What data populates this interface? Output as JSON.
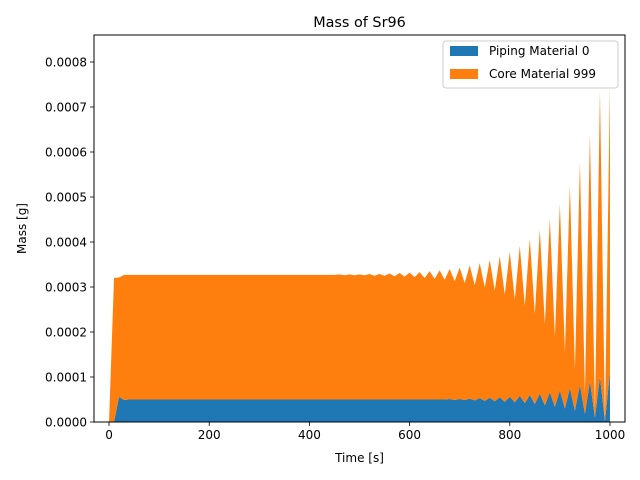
{
  "chart_data": {
    "type": "area",
    "stacked": true,
    "title": "Mass of Sr96",
    "xlabel": "Time [s]",
    "ylabel": "Mass [g]",
    "xlim": [
      -30,
      1030
    ],
    "ylim": [
      0,
      0.00086
    ],
    "x_ticks": [
      0,
      200,
      400,
      600,
      800,
      1000
    ],
    "x_tick_labels": [
      "0",
      "200",
      "400",
      "600",
      "800",
      "1000"
    ],
    "y_ticks": [
      0,
      0.0001,
      0.0002,
      0.0003,
      0.0004,
      0.0005,
      0.0006,
      0.0007,
      0.0008
    ],
    "y_tick_labels": [
      "0.0000",
      "0.0001",
      "0.0002",
      "0.0003",
      "0.0004",
      "0.0005",
      "0.0006",
      "0.0007",
      "0.0008"
    ],
    "grid": false,
    "legend_position": "top-right",
    "series": [
      {
        "name": "Piping Material 0",
        "color": "#1f77b4",
        "x": [
          0,
          10,
          20,
          30,
          40,
          50,
          60,
          70,
          80,
          90,
          100,
          110,
          120,
          130,
          140,
          150,
          160,
          170,
          180,
          190,
          200,
          210,
          220,
          230,
          240,
          250,
          260,
          270,
          280,
          290,
          300,
          310,
          320,
          330,
          340,
          350,
          360,
          370,
          380,
          390,
          400,
          410,
          420,
          430,
          440,
          450,
          460,
          470,
          480,
          490,
          500,
          510,
          520,
          530,
          540,
          550,
          560,
          570,
          580,
          590,
          600,
          610,
          620,
          630,
          640,
          650,
          660,
          670,
          680,
          690,
          700,
          710,
          720,
          730,
          740,
          750,
          760,
          770,
          780,
          790,
          800,
          810,
          820,
          830,
          840,
          850,
          860,
          870,
          880,
          890,
          900,
          910,
          920,
          930,
          940,
          950,
          960,
          970,
          980,
          990,
          1000
        ],
        "values": [
          0,
          0,
          5.6e-05,
          4.9e-05,
          5e-05,
          5e-05,
          5e-05,
          5e-05,
          5e-05,
          5e-05,
          5e-05,
          5e-05,
          5e-05,
          5e-05,
          5e-05,
          5e-05,
          5e-05,
          5e-05,
          5e-05,
          5e-05,
          5e-05,
          5e-05,
          5e-05,
          5e-05,
          5e-05,
          5e-05,
          5e-05,
          5e-05,
          5e-05,
          5e-05,
          5e-05,
          5e-05,
          5e-05,
          5e-05,
          5e-05,
          5e-05,
          5e-05,
          5e-05,
          5e-05,
          5e-05,
          5e-05,
          5e-05,
          5e-05,
          5e-05,
          5e-05,
          5e-05,
          5e-05,
          5e-05,
          5e-05,
          5e-05,
          5e-05,
          5e-05,
          5e-05,
          5e-05,
          5e-05,
          5e-05,
          5e-05,
          5e-05,
          5e-05,
          5e-05,
          5e-05,
          5e-05,
          5e-05,
          5e-05,
          5e-05,
          5e-05,
          5e-05,
          5e-05,
          5.1e-05,
          4.9e-05,
          5.1e-05,
          4.9e-05,
          5.2e-05,
          4.8e-05,
          5.3e-05,
          4.7e-05,
          5.4e-05,
          4.6e-05,
          5.5e-05,
          4.5e-05,
          5.6e-05,
          4.4e-05,
          5.8e-05,
          4.2e-05,
          6e-05,
          4e-05,
          6.3e-05,
          3.7e-05,
          6.6e-05,
          3.4e-05,
          7e-05,
          3e-05,
          7.5e-05,
          2.5e-05,
          8.2e-05,
          1.8e-05,
          9e-05,
          1e-05,
          0.0001,
          2e-06,
          0.00011
        ]
      },
      {
        "name": "Core Material 999",
        "color": "#ff7f0e",
        "x": [
          0,
          10,
          20,
          30,
          40,
          50,
          60,
          70,
          80,
          90,
          100,
          110,
          120,
          130,
          140,
          150,
          160,
          170,
          180,
          190,
          200,
          210,
          220,
          230,
          240,
          250,
          260,
          270,
          280,
          290,
          300,
          310,
          320,
          330,
          340,
          350,
          360,
          370,
          380,
          390,
          400,
          410,
          420,
          430,
          440,
          450,
          460,
          470,
          480,
          490,
          500,
          510,
          520,
          530,
          540,
          550,
          560,
          570,
          580,
          590,
          600,
          610,
          620,
          630,
          640,
          650,
          660,
          670,
          680,
          690,
          700,
          710,
          720,
          730,
          740,
          750,
          760,
          770,
          780,
          790,
          800,
          810,
          820,
          830,
          840,
          850,
          860,
          870,
          880,
          890,
          900,
          910,
          920,
          930,
          940,
          950,
          960,
          970,
          980,
          990,
          1000
        ],
        "values": [
          0,
          0.00032,
          0.000265,
          0.000278,
          0.000277,
          0.000277,
          0.000277,
          0.000277,
          0.000277,
          0.000277,
          0.000277,
          0.000277,
          0.000277,
          0.000277,
          0.000277,
          0.000277,
          0.000277,
          0.000277,
          0.000277,
          0.000277,
          0.000277,
          0.000277,
          0.000277,
          0.000277,
          0.000277,
          0.000277,
          0.000277,
          0.000277,
          0.000277,
          0.000277,
          0.000277,
          0.000277,
          0.000277,
          0.000277,
          0.000277,
          0.000277,
          0.000277,
          0.000277,
          0.000277,
          0.000277,
          0.000277,
          0.000277,
          0.000277,
          0.000277,
          0.000277,
          0.000277,
          0.000278,
          0.000276,
          0.000278,
          0.000276,
          0.000278,
          0.000276,
          0.000279,
          0.000275,
          0.000279,
          0.000275,
          0.00028,
          0.000274,
          0.000281,
          0.000273,
          0.000282,
          0.000272,
          0.000283,
          0.00027,
          0.000285,
          0.000268,
          0.000287,
          0.000266,
          0.000289,
          0.000264,
          0.000292,
          0.00026,
          0.000296,
          0.000256,
          0.0003,
          0.000252,
          0.000306,
          0.000246,
          0.000313,
          0.000238,
          0.000322,
          0.000228,
          0.000333,
          0.000216,
          0.000347,
          0.0002,
          0.000364,
          0.00018,
          0.000386,
          0.000155,
          0.000414,
          0.000125,
          0.00045,
          9e-05,
          0.000495,
          4.5e-05,
          0.00055,
          1.5e-05,
          0.000635,
          5e-06,
          0.000638
        ]
      }
    ]
  }
}
